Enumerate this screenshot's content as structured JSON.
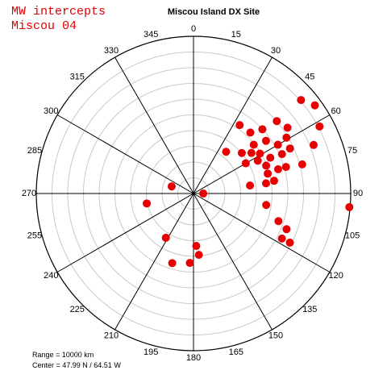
{
  "header": {
    "line1": "MW intercepts",
    "line2": "Miscou 04",
    "title": "Miscou Island DX Site"
  },
  "bearings": [
    0,
    15,
    30,
    45,
    60,
    75,
    90,
    105,
    120,
    135,
    150,
    165,
    180,
    195,
    210,
    225,
    240,
    255,
    270,
    285,
    300,
    315,
    330,
    345
  ],
  "footer": {
    "range": "Range = 10000 km",
    "center": "Center = 47.99 N / 64.51 W"
  },
  "intercepts": [
    {
      "bearing": 49,
      "range_km": 9060
    },
    {
      "bearing": 54,
      "range_km": 9540
    },
    {
      "bearing": 62,
      "range_km": 9080
    },
    {
      "bearing": 68,
      "range_km": 8240
    },
    {
      "bearing": 55,
      "range_km": 7300
    },
    {
      "bearing": 34,
      "range_km": 5250
    },
    {
      "bearing": 43,
      "range_km": 5300
    },
    {
      "bearing": 47,
      "range_km": 5990
    },
    {
      "bearing": 49,
      "range_km": 7020
    },
    {
      "bearing": 59,
      "range_km": 6900
    },
    {
      "bearing": 51,
      "range_km": 4930
    },
    {
      "bearing": 54,
      "range_km": 5700
    },
    {
      "bearing": 60,
      "range_km": 6200
    },
    {
      "bearing": 65,
      "range_km": 6770
    },
    {
      "bearing": 50,
      "range_km": 4010
    },
    {
      "bearing": 55,
      "range_km": 4500
    },
    {
      "bearing": 59,
      "range_km": 4930
    },
    {
      "bearing": 65,
      "range_km": 5390
    },
    {
      "bearing": 66,
      "range_km": 6160
    },
    {
      "bearing": 60,
      "range_km": 3840
    },
    {
      "bearing": 63,
      "range_km": 4590
    },
    {
      "bearing": 69,
      "range_km": 4950
    },
    {
      "bearing": 74,
      "range_km": 5600
    },
    {
      "bearing": 74,
      "range_km": 6120
    },
    {
      "bearing": 75,
      "range_km": 7160
    },
    {
      "bearing": 75,
      "range_km": 4890
    },
    {
      "bearing": 81,
      "range_km": 5190
    },
    {
      "bearing": 82,
      "range_km": 4660
    },
    {
      "bearing": 82,
      "range_km": 3630
    },
    {
      "bearing": 99,
      "range_km": 4680
    },
    {
      "bearing": 108,
      "range_km": 5680
    },
    {
      "bearing": 111,
      "range_km": 6340
    },
    {
      "bearing": 117,
      "range_km": 6310
    },
    {
      "bearing": 117,
      "range_km": 6880
    },
    {
      "bearing": 95,
      "range_km": 9950
    },
    {
      "bearing": 90,
      "range_km": 620
    },
    {
      "bearing": 288,
      "range_km": 1460
    },
    {
      "bearing": 258,
      "range_km": 3040
    },
    {
      "bearing": 212,
      "range_km": 3320
    },
    {
      "bearing": 177,
      "range_km": 3340
    },
    {
      "bearing": 175,
      "range_km": 3920
    },
    {
      "bearing": 183,
      "range_km": 4420
    },
    {
      "bearing": 197,
      "range_km": 4630
    },
    {
      "bearing": 38,
      "range_km": 3370
    }
  ]
}
